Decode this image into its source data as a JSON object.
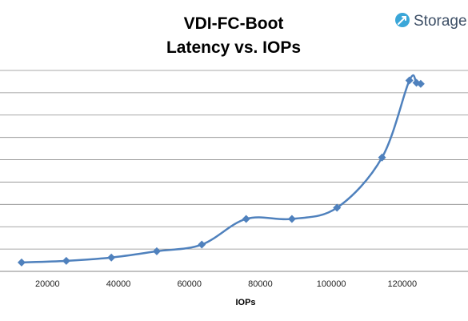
{
  "brand": {
    "name": "Storage",
    "icon": "storage-logo-icon",
    "icon_color": "#3aa6d8"
  },
  "chart_data": {
    "type": "line",
    "title": [
      "VDI-FC-Boot",
      "Latency vs. IOPs"
    ],
    "xlabel": "IOPs",
    "ylabel": "",
    "xlim": [
      0,
      125000
    ],
    "xticks": [
      20000,
      40000,
      60000,
      80000,
      100000,
      120000
    ],
    "ylim": [
      0,
      9
    ],
    "y_tick_labels_visible": false,
    "grid": "horizontal",
    "line_color": "#4f81bd",
    "marker": "diamond",
    "smooth": true,
    "series": [
      {
        "x": [
          12700,
          25300,
          38000,
          50800,
          63500,
          76000,
          88900,
          101600,
          114300,
          122000,
          124000,
          125200
        ],
        "y": [
          0.4,
          0.47,
          0.62,
          0.9,
          1.2,
          2.35,
          2.35,
          2.85,
          5.1,
          8.55,
          8.45,
          8.4
        ]
      }
    ]
  }
}
